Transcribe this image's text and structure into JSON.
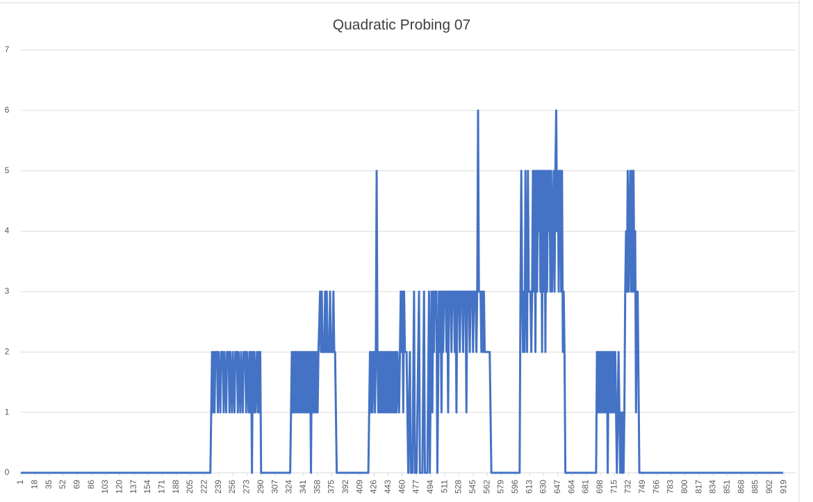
{
  "chart_data": {
    "type": "line",
    "title": "Quadratic Probing 07",
    "color": "#4472c4",
    "grid": true,
    "xlim": [
      1,
      933
    ],
    "ylim": [
      0,
      7
    ],
    "yticks": [
      0,
      1,
      2,
      3,
      4,
      5,
      6,
      7
    ],
    "xticks": [
      1,
      18,
      35,
      52,
      69,
      86,
      103,
      120,
      137,
      154,
      171,
      188,
      205,
      222,
      239,
      256,
      273,
      290,
      307,
      324,
      341,
      358,
      375,
      392,
      409,
      426,
      443,
      460,
      477,
      494,
      511,
      528,
      545,
      562,
      579,
      596,
      613,
      630,
      647,
      664,
      681,
      698,
      715,
      732,
      749,
      766,
      783,
      800,
      817,
      834,
      851,
      868,
      885,
      902,
      919
    ],
    "x": [
      1,
      229,
      231,
      232,
      233,
      234,
      235,
      237,
      238,
      239,
      241,
      242,
      244,
      245,
      246,
      248,
      249,
      251,
      252,
      253,
      255,
      256,
      258,
      259,
      261,
      262,
      263,
      265,
      266,
      268,
      269,
      271,
      272,
      273,
      275,
      276,
      277,
      278,
      279,
      280,
      281,
      282,
      283,
      285,
      286,
      287,
      288,
      289,
      290,
      325,
      327,
      328,
      329,
      330,
      331,
      332,
      333,
      334,
      335,
      336,
      337,
      338,
      339,
      340,
      341,
      342,
      343,
      344,
      345,
      346,
      347,
      348,
      349,
      350,
      351,
      352,
      353,
      354,
      355,
      356,
      357,
      358,
      359,
      361,
      362,
      363,
      364,
      366,
      367,
      368,
      369,
      370,
      372,
      373,
      374,
      376,
      377,
      378,
      379,
      381,
      419,
      421,
      422,
      423,
      424,
      425,
      426,
      427,
      428,
      429,
      430,
      431,
      432,
      433,
      434,
      435,
      436,
      437,
      438,
      439,
      440,
      441,
      442,
      443,
      444,
      445,
      446,
      447,
      448,
      449,
      450,
      451,
      452,
      453,
      454,
      456,
      457,
      458,
      459,
      460,
      461,
      462,
      463,
      465,
      467,
      469,
      470,
      472,
      474,
      475,
      477,
      480,
      481,
      484,
      486,
      487,
      490,
      492,
      493,
      495,
      496,
      497,
      498,
      499,
      501,
      502,
      504,
      505,
      506,
      507,
      508,
      509,
      510,
      512,
      513,
      514,
      515,
      516,
      518,
      519,
      520,
      522,
      523,
      524,
      525,
      526,
      528,
      529,
      530,
      532,
      533,
      534,
      536,
      537,
      538,
      540,
      541,
      542,
      544,
      545,
      546,
      548,
      549,
      550,
      551,
      552,
      554,
      555,
      556,
      557,
      558,
      559,
      560,
      562,
      563,
      565,
      567,
      601,
      602,
      603,
      604,
      605,
      606,
      607,
      608,
      609,
      610,
      611,
      612,
      614,
      615,
      616,
      617,
      618,
      619,
      620,
      621,
      622,
      623,
      624,
      625,
      626,
      627,
      628,
      629,
      630,
      631,
      632,
      633,
      634,
      635,
      636,
      637,
      638,
      639,
      640,
      641,
      642,
      643,
      644,
      645,
      646,
      647,
      648,
      649,
      650,
      651,
      652,
      653,
      654,
      655,
      656,
      693,
      694,
      695,
      696,
      697,
      698,
      699,
      700,
      701,
      702,
      703,
      704,
      705,
      706,
      707,
      708,
      709,
      710,
      711,
      712,
      713,
      714,
      715,
      716,
      718,
      719,
      720,
      721,
      722,
      723,
      724,
      725,
      726,
      727,
      728,
      729,
      730,
      731,
      732,
      733,
      734,
      735,
      736,
      737,
      738,
      739,
      740,
      741,
      742,
      743,
      745,
      918
    ],
    "values": [
      0,
      0,
      2,
      1,
      2,
      1,
      2,
      2,
      1,
      2,
      1,
      2,
      2,
      1,
      2,
      1,
      2,
      2,
      1,
      2,
      1,
      2,
      1,
      2,
      2,
      1,
      2,
      1,
      2,
      1,
      2,
      2,
      1,
      2,
      1,
      2,
      1,
      2,
      0,
      2,
      1,
      2,
      1,
      2,
      1,
      2,
      1,
      2,
      0,
      0,
      2,
      1,
      2,
      1,
      2,
      1,
      2,
      1,
      2,
      1,
      2,
      1,
      2,
      1,
      2,
      1,
      2,
      1,
      2,
      1,
      2,
      1,
      2,
      0,
      2,
      1,
      2,
      1,
      2,
      1,
      2,
      1,
      2,
      3,
      2,
      3,
      2,
      2,
      3,
      2,
      3,
      2,
      2,
      3,
      2,
      2,
      3,
      2,
      2,
      0,
      0,
      2,
      1,
      2,
      1,
      2,
      2,
      1,
      2,
      5,
      2,
      1,
      2,
      1,
      2,
      1,
      2,
      1,
      2,
      1,
      2,
      1,
      2,
      1,
      2,
      1,
      2,
      1,
      2,
      1,
      2,
      1,
      2,
      1,
      2,
      1,
      2,
      3,
      2,
      3,
      1,
      3,
      2,
      2,
      0,
      2,
      0,
      0,
      3,
      0,
      0,
      3,
      0,
      0,
      3,
      0,
      0,
      3,
      0,
      3,
      1,
      3,
      2,
      3,
      3,
      0,
      3,
      2,
      3,
      1,
      3,
      2,
      3,
      3,
      2,
      3,
      1,
      3,
      3,
      2,
      3,
      3,
      2,
      3,
      1,
      3,
      3,
      2,
      3,
      3,
      2,
      3,
      3,
      1,
      3,
      3,
      2,
      3,
      3,
      2,
      3,
      3,
      2,
      3,
      6,
      3,
      3,
      2,
      3,
      2,
      3,
      2,
      2,
      2,
      2,
      2,
      0,
      0,
      3,
      5,
      3,
      2,
      3,
      2,
      5,
      3,
      2,
      5,
      3,
      3,
      2,
      3,
      5,
      3,
      5,
      2,
      5,
      3,
      5,
      4,
      5,
      3,
      5,
      2,
      5,
      3,
      5,
      2,
      5,
      3,
      5,
      4,
      5,
      3,
      5,
      3,
      4,
      5,
      3,
      5,
      6,
      4,
      5,
      3,
      5,
      5,
      3,
      5,
      2,
      3,
      2,
      0,
      0,
      2,
      1,
      2,
      1,
      2,
      1,
      2,
      1,
      2,
      1,
      2,
      1,
      2,
      0,
      2,
      1,
      2,
      1,
      2,
      1,
      2,
      1,
      2,
      0,
      1,
      2,
      1,
      0,
      1,
      0,
      1,
      0,
      1,
      3,
      4,
      3,
      5,
      3,
      4,
      5,
      3,
      5,
      3,
      5,
      3,
      4,
      1,
      3,
      3,
      0,
      0
    ]
  }
}
